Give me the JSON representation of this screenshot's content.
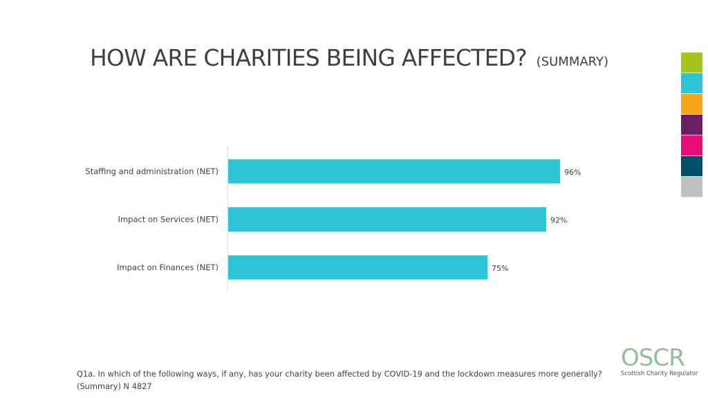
{
  "title": "HOW ARE CHARITIES BEING AFFECTED?",
  "subtitle": "(SUMMARY)",
  "color_strip": [
    "#a7c61b",
    "#2ec4d6",
    "#f6a51b",
    "#6b1f63",
    "#ea0b74",
    "#004e68",
    "#c0c0c0"
  ],
  "chart_data": {
    "type": "bar",
    "orientation": "horizontal",
    "categories": [
      "Staffing and administration (NET)",
      "Impact on Services (NET)",
      "Impact on Finances (NET)"
    ],
    "values": [
      96,
      92,
      75
    ],
    "value_labels": [
      "96%",
      "92%",
      "75%"
    ],
    "unit": "%",
    "xlim": [
      0,
      100
    ],
    "bar_color": "#2ec4d6",
    "grid": false,
    "legend": "none"
  },
  "footnote": "Q1a. In which of the following ways, if any, has your charity been affected by COVID-19 and the lockdown measures more generally? (Summary) N 4827",
  "logo": {
    "mark": "OSCR",
    "tagline": "Scottish Charity Regulator"
  }
}
